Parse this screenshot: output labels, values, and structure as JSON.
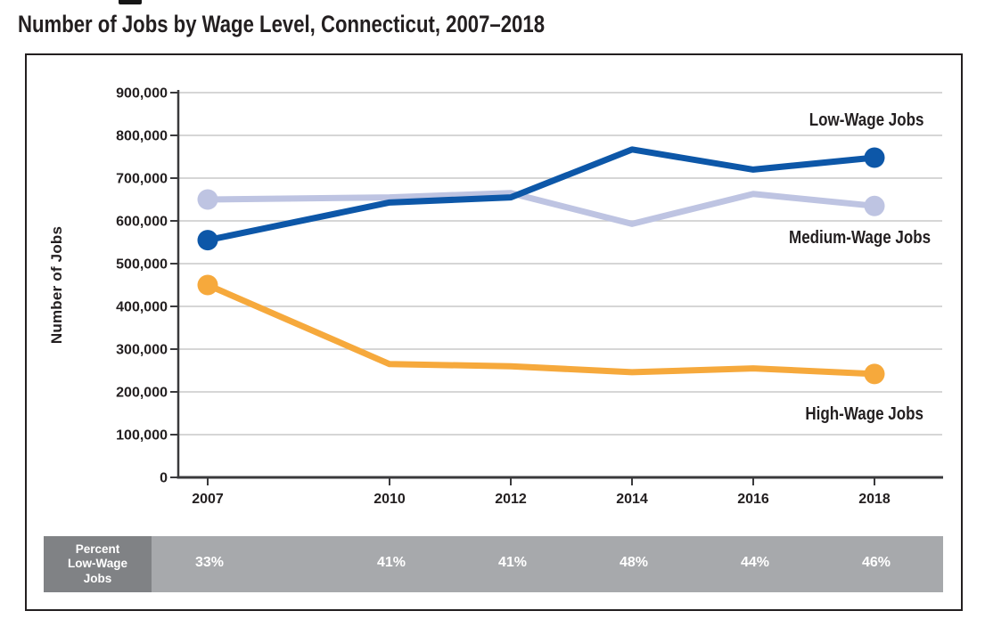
{
  "page": {
    "title": "Number of Jobs by Wage Level, Connecticut, 2007–2018"
  },
  "chart_data": {
    "type": "line",
    "title": "Number of Jobs by Wage Level, Connecticut, 2007–2018",
    "xlabel": "",
    "ylabel": "Number of Jobs",
    "x": [
      2007,
      2010,
      2012,
      2014,
      2016,
      2018
    ],
    "ylim": [
      0,
      900000
    ],
    "ytick_step": 100000,
    "grid": true,
    "legend_position": "end-of-line labels",
    "series": [
      {
        "name": "Low-Wage Jobs",
        "color": "#0D57A8",
        "values": [
          555000,
          643000,
          655000,
          767000,
          720000,
          748000
        ]
      },
      {
        "name": "Medium-Wage Jobs",
        "color": "#BEC4E2",
        "values": [
          650000,
          655000,
          665000,
          593000,
          663000,
          635000
        ]
      },
      {
        "name": "High-Wage Jobs",
        "color": "#F6A93C",
        "values": [
          450000,
          265000,
          260000,
          246000,
          255000,
          242000
        ]
      }
    ],
    "percent_row": {
      "label_lines": [
        "Percent",
        "Low-Wage",
        "Jobs"
      ],
      "values": [
        "33%",
        "41%",
        "41%",
        "48%",
        "44%",
        "46%"
      ]
    }
  },
  "colors": {
    "axis": "#3a3a3c",
    "gridline": "#c9c9c9",
    "text": "#231f20",
    "percent_label_box": "#808285",
    "percent_bar": "#A7A9AC",
    "low_wage": "#0D57A8",
    "medium_wage": "#BEC4E2",
    "high_wage": "#F6A93C"
  }
}
